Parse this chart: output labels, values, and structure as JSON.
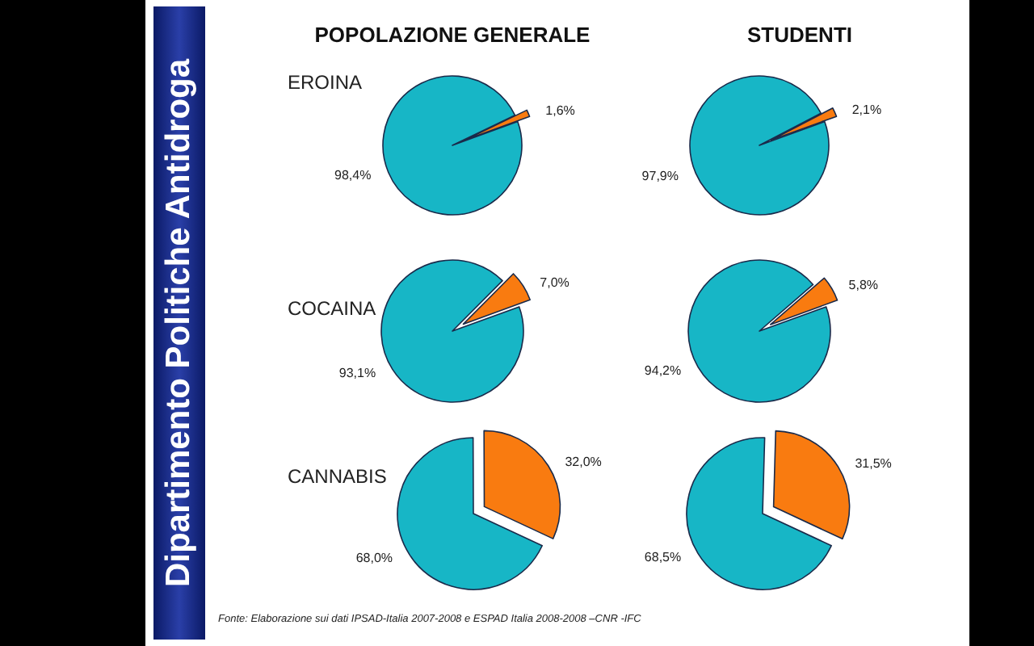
{
  "chart_data": [
    {
      "type": "other",
      "title": "Dipartimento Politiche Antidroga",
      "annotations": [
        "Fonte: Elaborazione sui dati IPSAD-Italia 2007-2008 e ESPAD Italia 2008-2008 –CNR -IFC"
      ]
    },
    {
      "type": "pie",
      "title": "POPOLAZIONE GENERALE",
      "subtitle": "EROINA",
      "categories": [
        null,
        null
      ],
      "values": [
        1.6,
        98.4
      ],
      "colors": [
        "#f97b10",
        "#17b6c6"
      ],
      "value_labels": [
        "1,6%",
        "98,4%"
      ]
    },
    {
      "type": "pie",
      "title": "STUDENTI",
      "categories": [
        null,
        null
      ],
      "values": [
        2.1,
        97.9
      ],
      "colors": [
        "#f97b10",
        "#17b6c6"
      ],
      "value_labels": [
        "2,1%",
        "97,9%"
      ]
    },
    {
      "type": "pie",
      "subtitle": "COCAINA",
      "categories": [
        null,
        null
      ],
      "values": [
        7.0,
        93.1
      ],
      "colors": [
        "#f97b10",
        "#17b6c6"
      ],
      "value_labels": [
        "7,0%",
        "93,1%"
      ]
    },
    {
      "type": "pie",
      "categories": [
        null,
        null
      ],
      "values": [
        5.8,
        94.2
      ],
      "colors": [
        "#f97b10",
        "#17b6c6"
      ],
      "value_labels": [
        "5,8%",
        "94,2%"
      ]
    },
    {
      "type": "pie",
      "subtitle": "CANNABIS",
      "categories": [
        null,
        null
      ],
      "values": [
        32.0,
        68.0
      ],
      "colors": [
        "#f97b10",
        "#17b6c6"
      ],
      "value_labels": [
        "32,0%",
        "68,0%"
      ]
    },
    {
      "type": "pie",
      "categories": [
        null,
        null
      ],
      "values": [
        31.5,
        68.5
      ],
      "colors": [
        "#f97b10",
        "#17b6c6"
      ],
      "value_labels": [
        "31,5%",
        "68,5%"
      ]
    }
  ]
}
